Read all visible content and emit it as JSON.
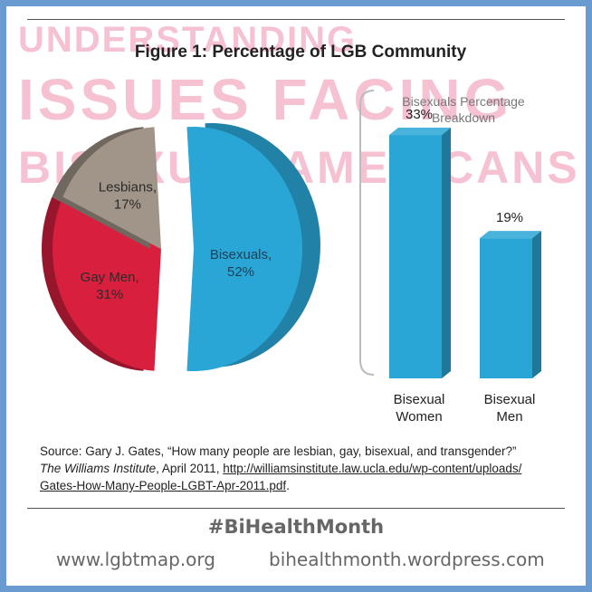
{
  "watermark": {
    "line1": "UNDERSTANDING",
    "line2": "ISSUES FACING",
    "line3": "BISEXUAL AMERICANS"
  },
  "chart_data": [
    {
      "type": "pie",
      "title": "Figure 1: Percentage of LGB Community",
      "slices": [
        {
          "label": "Lesbians,",
          "value": 17,
          "value_label": "17%",
          "color": "#a09588"
        },
        {
          "label": "Gay Men,",
          "value": 31,
          "value_label": "31%",
          "color": "#d81f3d"
        },
        {
          "label": "Bisexuals,",
          "value": 52,
          "value_label": "52%",
          "color": "#2aa6d6",
          "exploded": true
        }
      ]
    },
    {
      "type": "bar",
      "title": "Bisexuals Percentage Breakdown",
      "categories": [
        "Bisexual Women",
        "Bisexual Men"
      ],
      "category_lines": [
        [
          "Bisexual",
          "Women"
        ],
        [
          "Bisexual",
          "Men"
        ]
      ],
      "values": [
        33,
        19
      ],
      "value_labels": [
        "33%",
        "19%"
      ],
      "color": "#2aa6d6",
      "ylim": [
        0,
        40
      ]
    }
  ],
  "source": {
    "prefix": "Source: Gary J. Gates, “How many people are lesbian, gay, bisexual, and transgender?”",
    "journal": "The Williams Institute",
    "date": ", April 2011, ",
    "url": "http://williamsinstitute.law.ucla.edu/wp-content/uploads/Gates-How-Many-People-LGBT-Apr-2011.pdf",
    "url_line1": "http://williamsinstitute.law.ucla.edu/wp-content/uploads/",
    "url_line2": "Gates-How-Many-People-LGBT-Apr-2011.pdf",
    "suffix": "."
  },
  "footer": {
    "hashtag": "#BiHealthMonth",
    "site_left": "www.lgbtmap.org",
    "site_right": "bihealthmonth.wordpress.com"
  },
  "colors": {
    "border": "#6a9bd0",
    "watermark": "#f6c2d2",
    "bisexual": "#2aa6d6",
    "gay_men": "#d81f3d",
    "lesbians": "#a09588"
  }
}
